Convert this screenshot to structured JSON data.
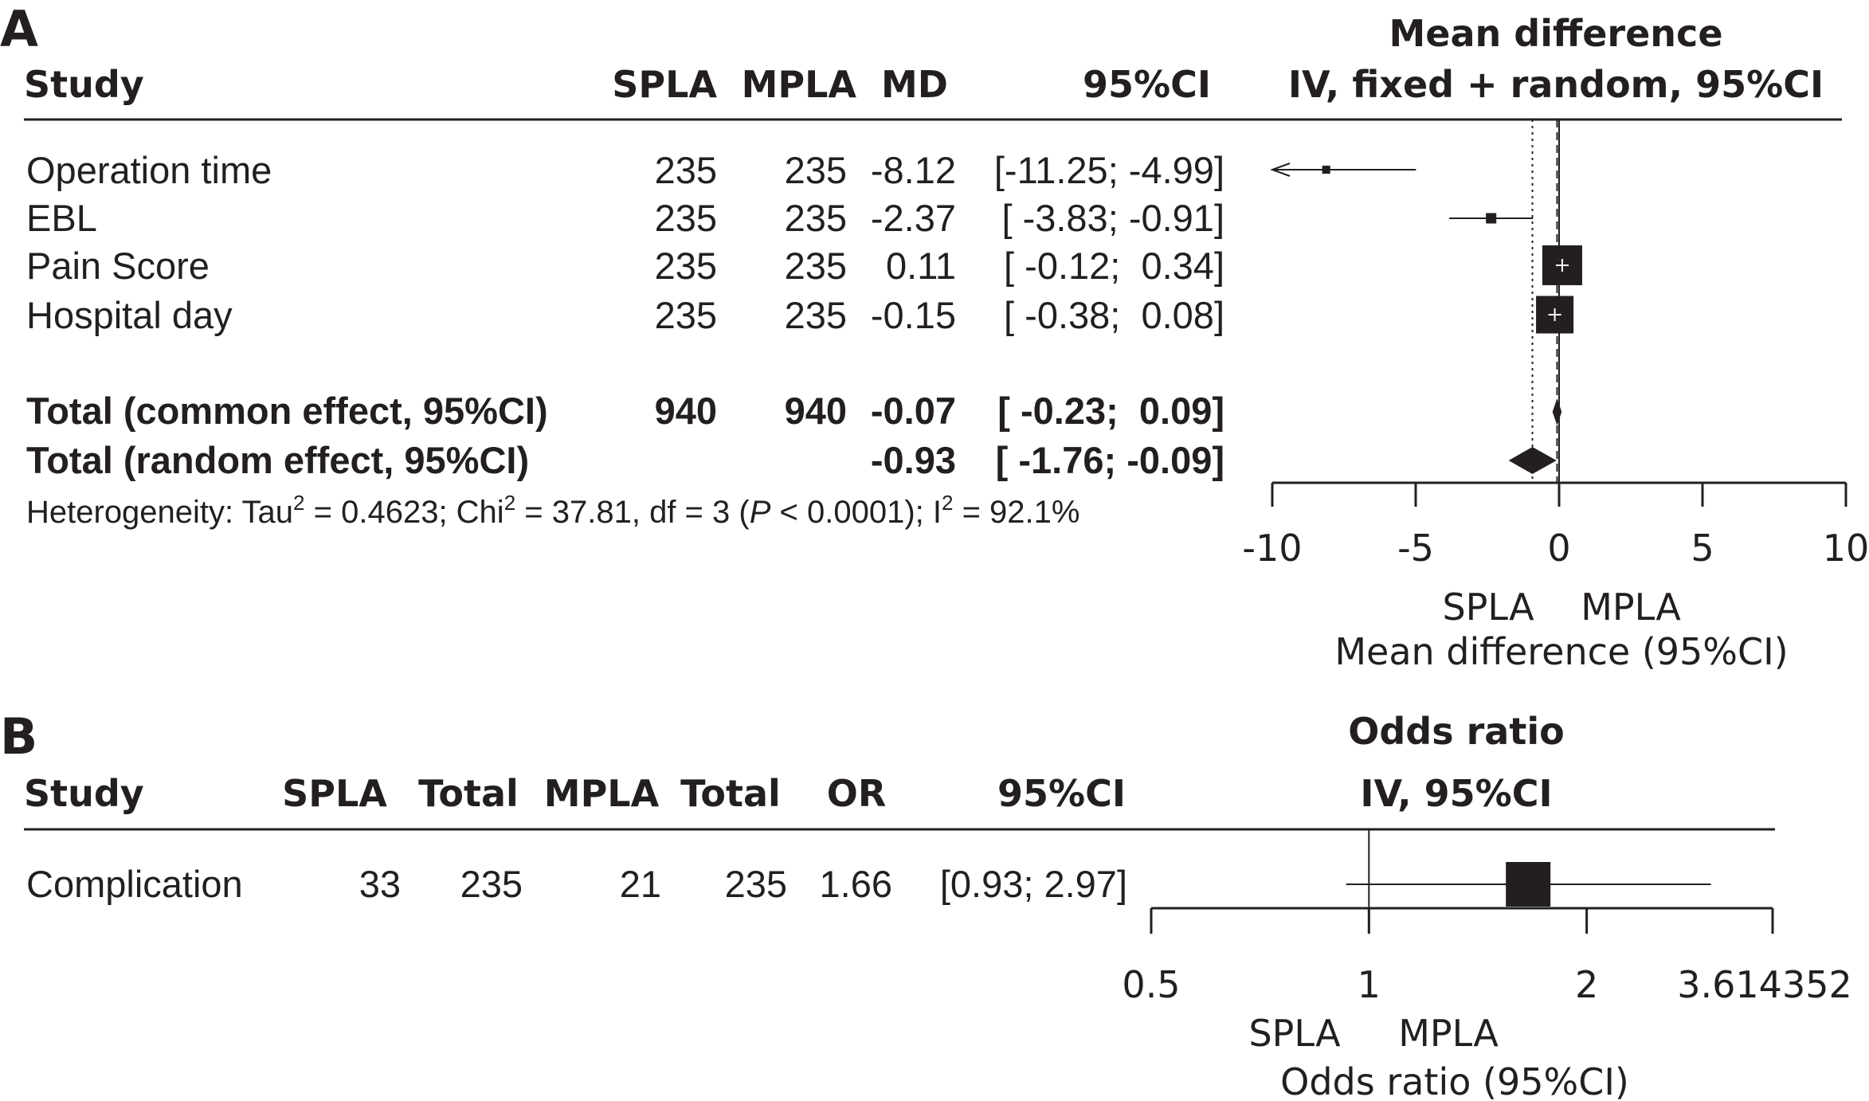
{
  "chart_data": [
    {
      "panel": "A",
      "type": "forest",
      "header": {
        "study": "Study",
        "col1": "SPLA",
        "col2": "MPLA",
        "est": "MD",
        "ci": "95%CI",
        "plot_title_1": "Mean difference",
        "plot_title_2": "IV, fixed + random, 95%CI"
      },
      "rows": [
        {
          "label": "Operation time",
          "n1": "235",
          "n2": "235",
          "est_text": "-8.12",
          "ci_text": "[-11.25; -4.99]",
          "est": -8.12,
          "lo": -11.25,
          "hi": -4.99,
          "weight": 0.05
        },
        {
          "label": "EBL",
          "n1": "235",
          "n2": "235",
          "est_text": "-2.37",
          "ci_text": "[ -3.83; -0.91]",
          "est": -2.37,
          "lo": -3.83,
          "hi": -0.91,
          "weight": 0.12
        },
        {
          "label": "Pain Score",
          "n1": "235",
          "n2": "235",
          "est_text": "0.11",
          "ci_text": "[ -0.12;  0.34]",
          "est": 0.11,
          "lo": -0.12,
          "hi": 0.34,
          "weight": 1.0
        },
        {
          "label": "Hospital day",
          "n1": "235",
          "n2": "235",
          "est_text": "-0.15",
          "ci_text": "[ -0.38;  0.08]",
          "est": -0.15,
          "lo": -0.38,
          "hi": 0.08,
          "weight": 0.93
        }
      ],
      "totals": [
        {
          "label": "Total (common effect, 95%CI)",
          "n1": "940",
          "n2": "940",
          "est_text": "-0.07",
          "ci_text": "[ -0.23;  0.09]",
          "est": -0.07,
          "lo": -0.23,
          "hi": 0.09
        },
        {
          "label": "Total (random effect, 95%CI)",
          "n1": "",
          "n2": "",
          "est_text": "-0.93",
          "ci_text": "[ -1.76; -0.09]",
          "est": -0.93,
          "lo": -1.76,
          "hi": -0.09
        }
      ],
      "heterogeneity": {
        "prefix": "Heterogeneity: Tau",
        "tau2_sup": "2",
        "tau2": " = 0.4623; Chi",
        "chi2_sup": "2",
        "chi2": " = 37.81, df = 3 (",
        "p_italic": "P",
        "p": " < 0.0001); I",
        "i2_sup": "2",
        "i2": " = 92.1%"
      },
      "axis": {
        "min": -10,
        "max": 10,
        "ticks": [
          -10,
          -5,
          0,
          5,
          10
        ],
        "tick_labels": [
          "-10",
          "-5",
          "0",
          "5",
          "10"
        ]
      },
      "favours_left": "SPLA",
      "favours_right": "MPLA",
      "xlabel": "Mean difference (95%CI)"
    },
    {
      "panel": "B",
      "type": "forest",
      "header": {
        "study": "Study",
        "col1": "SPLA",
        "col2": "Total",
        "col3": "MPLA",
        "col4": "Total",
        "est": "OR",
        "ci": "95%CI",
        "plot_title_1": "Odds ratio",
        "plot_title_2": "IV, 95%CI"
      },
      "rows": [
        {
          "label": "Complication",
          "e1": "33",
          "t1": "235",
          "e2": "21",
          "t2": "235",
          "est_text": "1.66",
          "ci_text": "[0.93; 2.97]",
          "est": 1.66,
          "lo": 0.93,
          "hi": 2.97
        }
      ],
      "axis": {
        "scale": "log",
        "min": 0.5,
        "max": 3.614352,
        "ticks": [
          0.5,
          1,
          2,
          3.614352
        ],
        "tick_labels": [
          "0.5",
          "1",
          "2",
          "3.614352"
        ]
      },
      "favours_left": "SPLA",
      "favours_right": "MPLA",
      "xlabel": "Odds ratio (95%CI)"
    }
  ]
}
